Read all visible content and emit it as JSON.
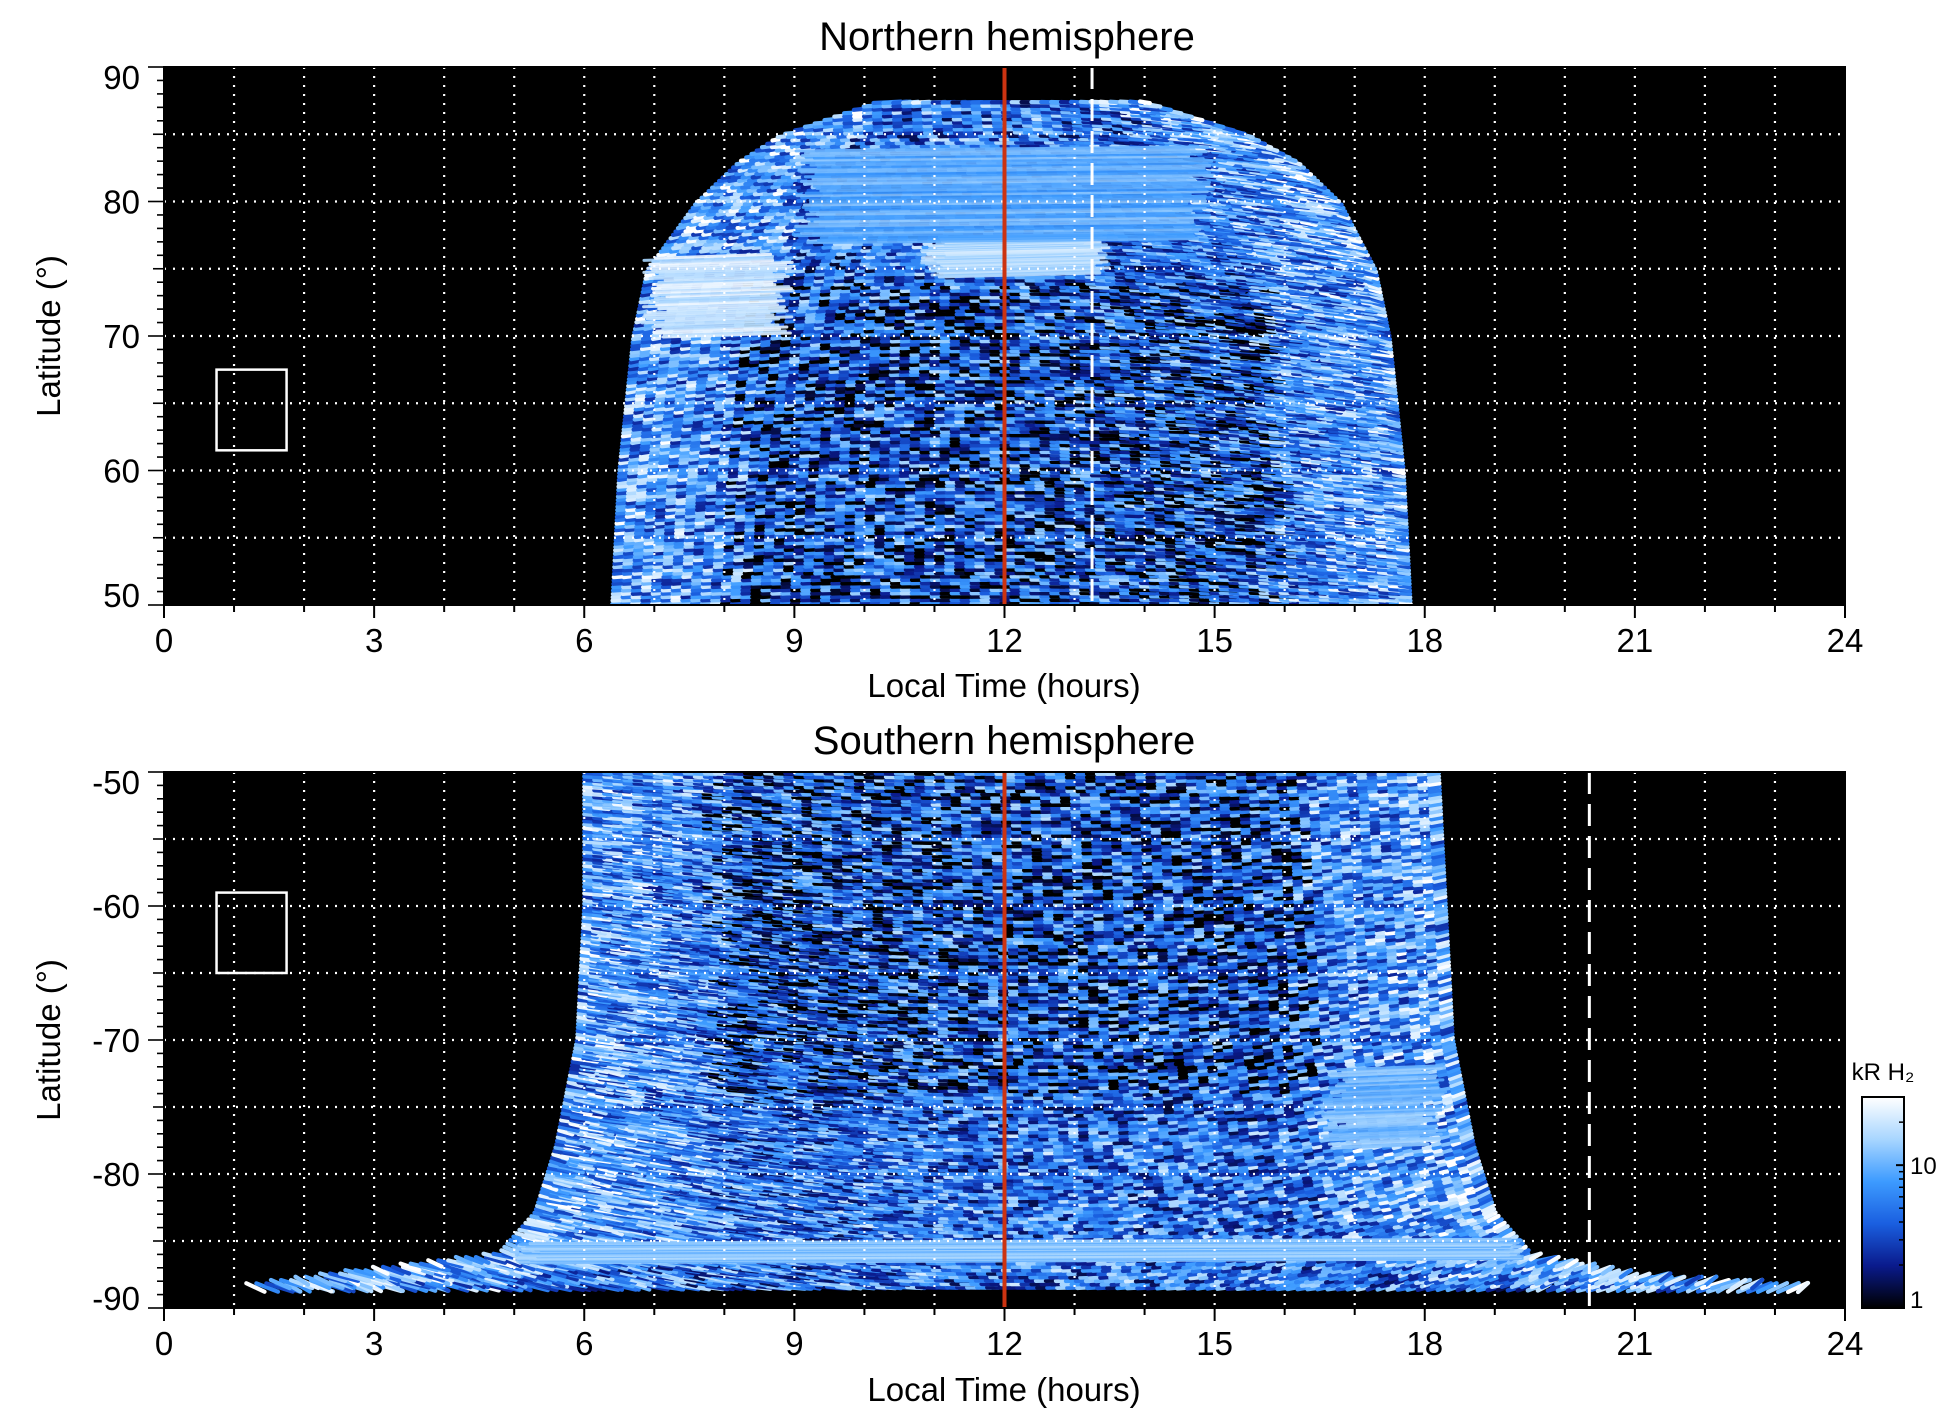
{
  "chart_data": [
    {
      "type": "heatmap",
      "title": "Northern hemisphere",
      "xlabel": "Local Time (hours)",
      "ylabel": "Latitude (°)",
      "xlim": [
        0,
        24
      ],
      "ylim": [
        50,
        90
      ],
      "xticks": [
        "0",
        "3",
        "6",
        "9",
        "12",
        "15",
        "18",
        "21",
        "24"
      ],
      "yticks": [
        "50",
        "60",
        "70",
        "80",
        "90"
      ],
      "grid": true,
      "grid_x_step_hours": 1,
      "grid_y_step_degrees": 5,
      "coverage": [
        {
          "lat": 50,
          "lt_start": 6.4,
          "lt_end": 17.8
        },
        {
          "lat": 60,
          "lt_start": 6.5,
          "lt_end": 17.7
        },
        {
          "lat": 70,
          "lt_start": 6.7,
          "lt_end": 17.5
        },
        {
          "lat": 75,
          "lt_start": 6.9,
          "lt_end": 17.3
        },
        {
          "lat": 80,
          "lt_start": 7.6,
          "lt_end": 16.8
        },
        {
          "lat": 83,
          "lt_start": 8.2,
          "lt_end": 16.2
        },
        {
          "lat": 85,
          "lt_start": 8.8,
          "lt_end": 15.5
        },
        {
          "lat": 87.5,
          "lt_start": 10.2,
          "lt_end": 14.0
        }
      ],
      "bright_regions": [
        {
          "lt": [
            6.8,
            9.0
          ],
          "lat": [
            70,
            76
          ],
          "level": 25
        },
        {
          "lt": [
            10.8,
            13.5
          ],
          "lat": [
            74.5,
            77.5
          ],
          "level": 22
        },
        {
          "lt": [
            9.0,
            15.0
          ],
          "lat": [
            77,
            84
          ],
          "level": 12
        }
      ],
      "reference_lines": [
        {
          "style": "solid",
          "color": "#cc3311",
          "x": 12
        },
        {
          "style": "dashed",
          "color": "#ffffff",
          "x": 13.25
        }
      ],
      "marker_box": {
        "lt": [
          0.75,
          1.75
        ],
        "lat": [
          61.5,
          67.5
        ]
      }
    },
    {
      "type": "heatmap",
      "title": "Southern hemisphere",
      "xlabel": "Local Time (hours)",
      "ylabel": "Latitude (°)",
      "xlim": [
        0,
        24
      ],
      "ylim": [
        -90,
        -50
      ],
      "xticks": [
        "0",
        "3",
        "6",
        "9",
        "12",
        "15",
        "18",
        "21",
        "24"
      ],
      "yticks": [
        "-90",
        "-80",
        "-70",
        "-60",
        "-50"
      ],
      "grid": true,
      "grid_x_step_hours": 1,
      "grid_y_step_degrees": 5,
      "coverage": [
        {
          "lat": -50,
          "lt_start": 6.0,
          "lt_end": 18.2
        },
        {
          "lat": -60,
          "lt_start": 6.0,
          "lt_end": 18.3
        },
        {
          "lat": -70,
          "lt_start": 5.9,
          "lt_end": 18.4
        },
        {
          "lat": -78,
          "lt_start": 5.6,
          "lt_end": 18.7
        },
        {
          "lat": -83,
          "lt_start": 5.3,
          "lt_end": 19.0
        },
        {
          "lat": -86,
          "lt_start": 4.8,
          "lt_end": 19.5
        },
        {
          "lat": -87.5,
          "lt_start": 2.5,
          "lt_end": 21.0
        },
        {
          "lat": -88.6,
          "lt_start": 1.0,
          "lt_end": 23.8
        }
      ],
      "bright_regions": [
        {
          "lt": [
            5.0,
            19.4
          ],
          "lat": [
            -86.5,
            -85.0
          ],
          "level": 15
        },
        {
          "lt": [
            16.5,
            18.3
          ],
          "lat": [
            -78,
            -72
          ],
          "level": 14
        }
      ],
      "reference_lines": [
        {
          "style": "solid",
          "color": "#cc3311",
          "x": 12
        },
        {
          "style": "dashed",
          "color": "#ffffff",
          "x": 20.35
        }
      ],
      "marker_box": {
        "lt": [
          0.75,
          1.75
        ],
        "lat": [
          -65,
          -59
        ]
      }
    }
  ],
  "colorbar": {
    "label": "kR H₂",
    "scale": "log",
    "range": [
      1,
      30
    ],
    "tick_labels": [
      "1",
      "10"
    ],
    "colors": [
      "#000000",
      "#0a1a8c",
      "#1a5fe0",
      "#3d9bff",
      "#a8d6ff",
      "#ffffff"
    ]
  }
}
